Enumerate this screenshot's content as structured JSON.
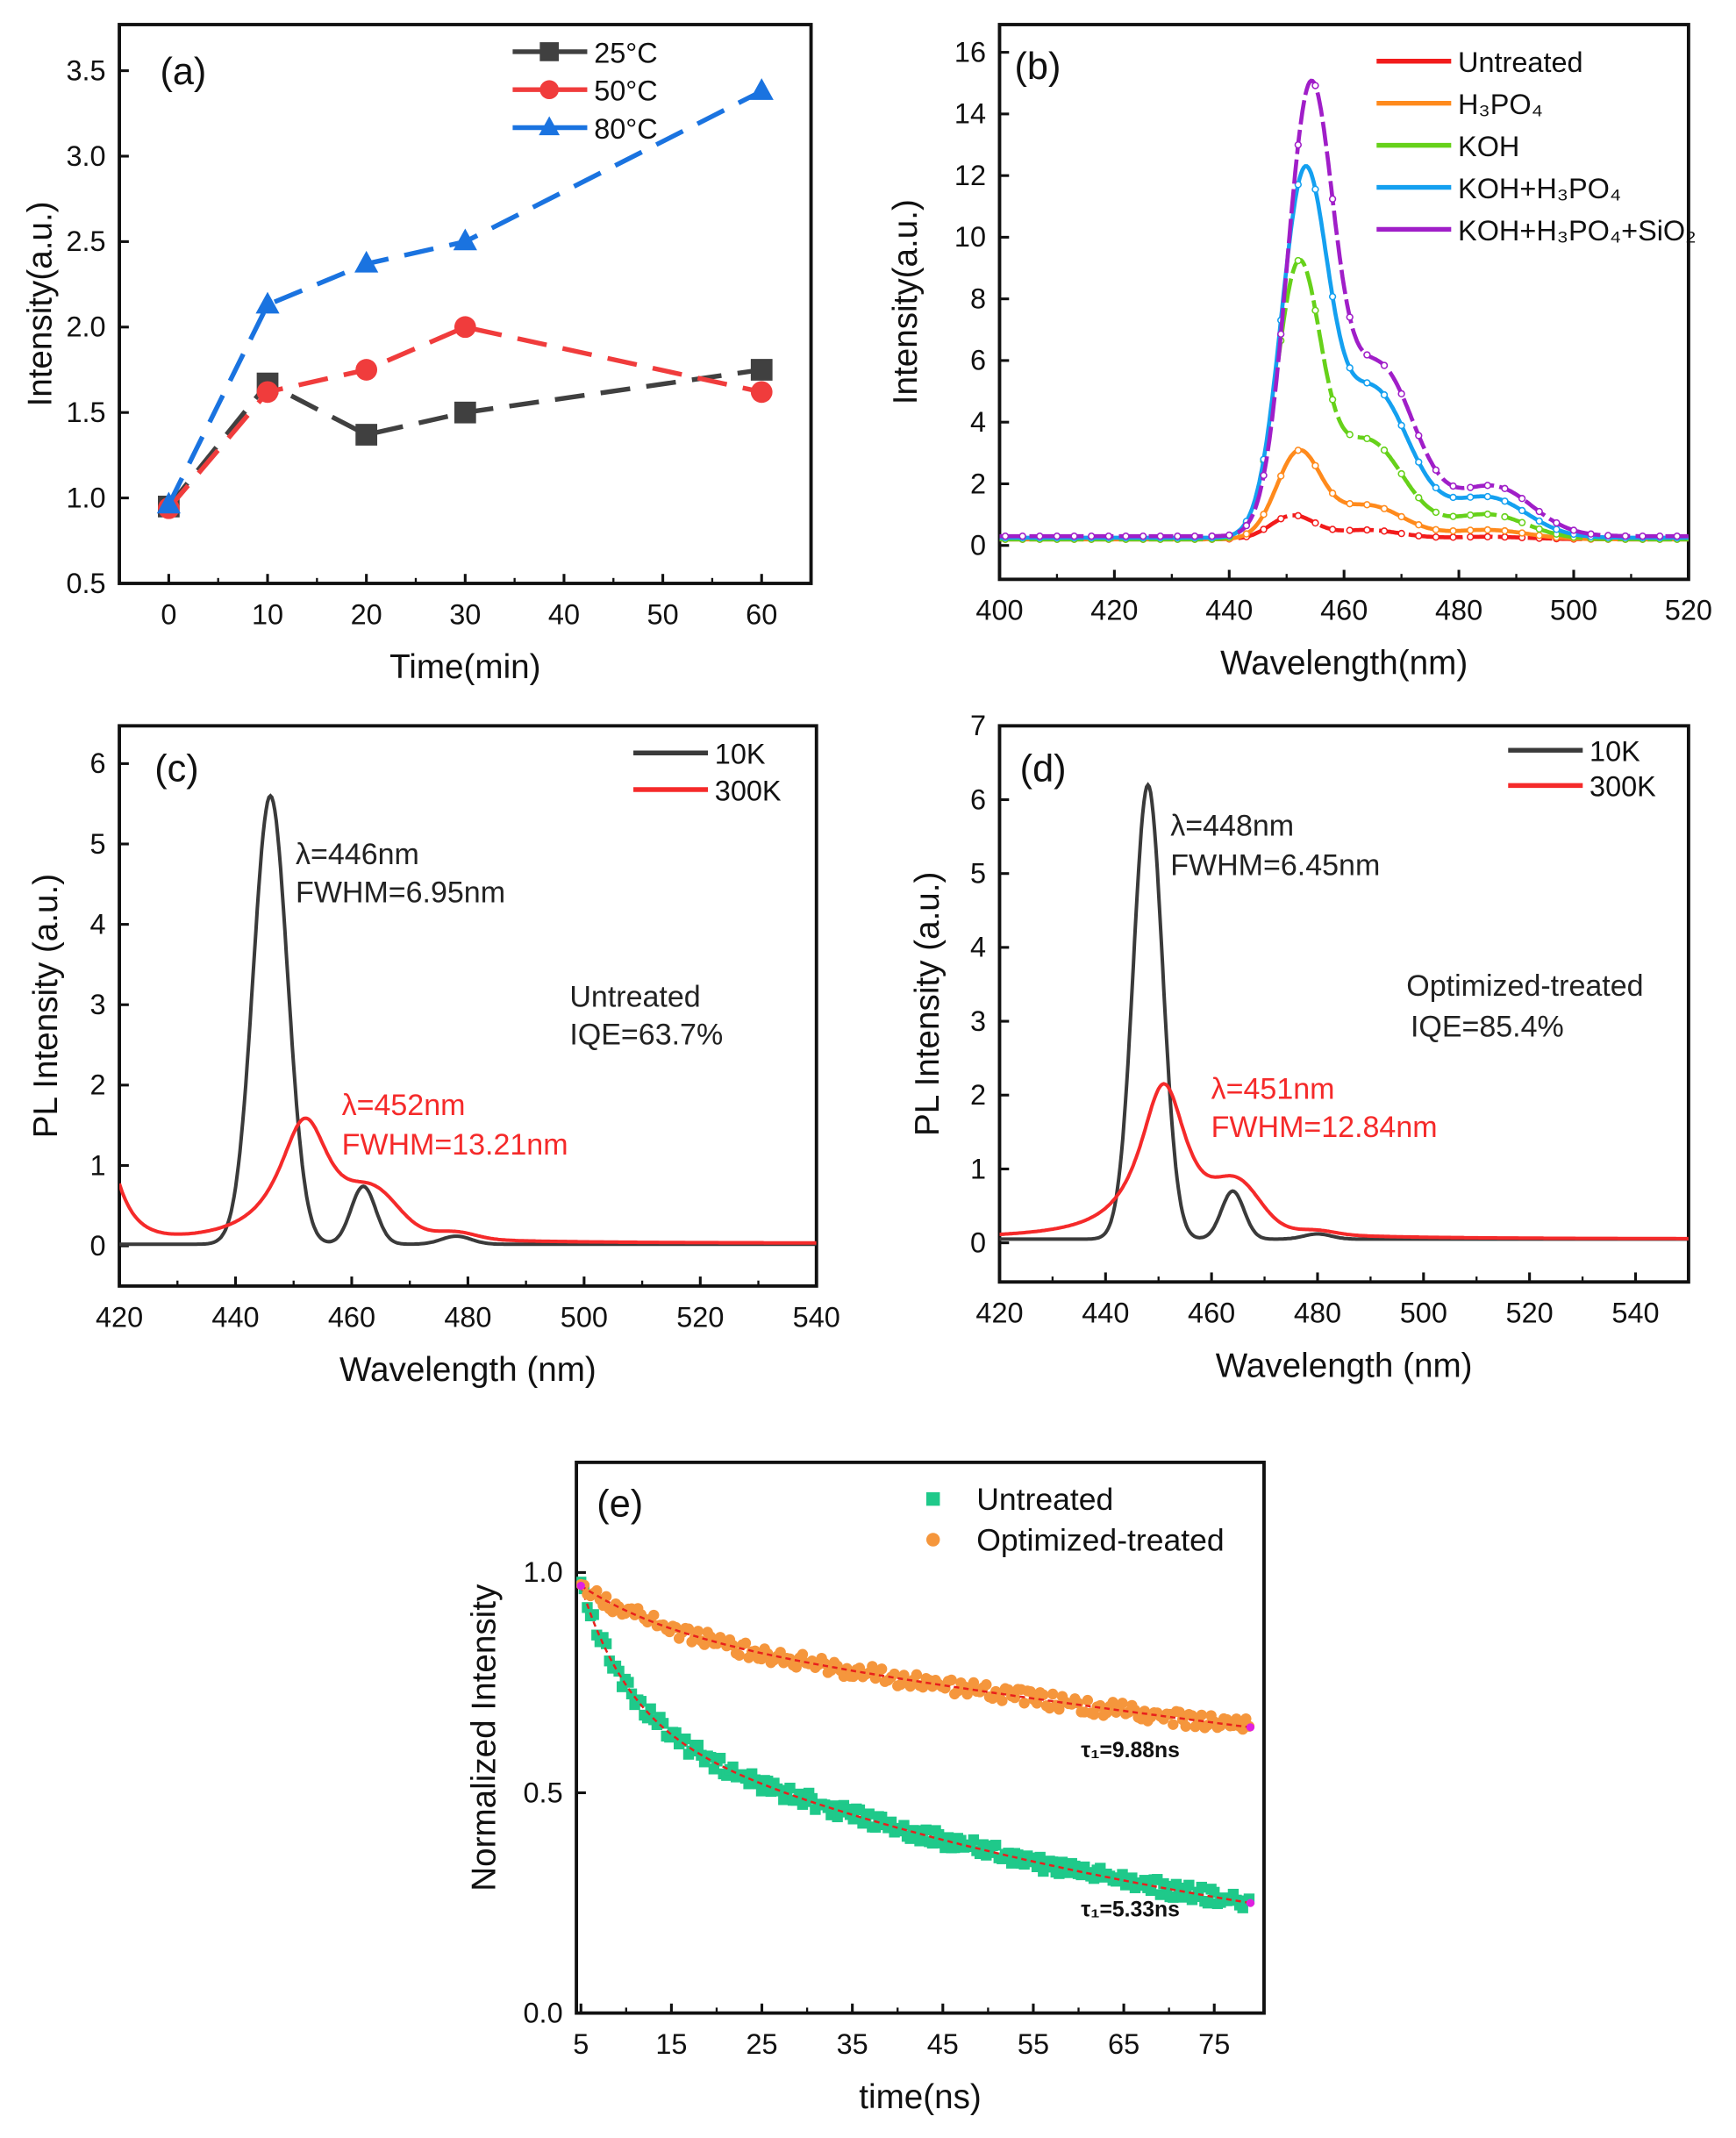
{
  "chart_data": [
    {
      "panel": "(a)",
      "type": "line",
      "xlabel": "Time(min)",
      "ylabel": "Intensity(a.u.)",
      "xlim": [
        -5,
        65
      ],
      "ylim": [
        0.5,
        3.77
      ],
      "xticks": [
        "0",
        "10",
        "20",
        "30",
        "40",
        "50",
        "60"
      ],
      "yticks": [
        "0.5",
        "1.0",
        "1.5",
        "2.0",
        "2.5",
        "3.0",
        "3.5"
      ],
      "legend": "top-right",
      "series": [
        {
          "name": "25°C",
          "color": "#404040",
          "marker": "square",
          "x": [
            0,
            10,
            20,
            30,
            60
          ],
          "y": [
            0.95,
            1.67,
            1.37,
            1.5,
            1.75
          ]
        },
        {
          "name": "50°C",
          "color": "#f03c3c",
          "marker": "circle",
          "x": [
            0,
            10,
            20,
            30,
            60
          ],
          "y": [
            0.94,
            1.62,
            1.75,
            2.0,
            1.62
          ]
        },
        {
          "name": "80°C",
          "color": "#1a73e0",
          "marker": "triangle",
          "x": [
            0,
            10,
            20,
            30,
            60
          ],
          "y": [
            0.96,
            2.13,
            2.37,
            2.5,
            3.38
          ]
        }
      ]
    },
    {
      "panel": "(b)",
      "type": "line",
      "xlabel": "Wavelength(nm)",
      "ylabel": "Intensity(a.u.)",
      "xlim": [
        400,
        520
      ],
      "ylim": [
        -1.1,
        16.9
      ],
      "xticks": [
        "400",
        "420",
        "440",
        "460",
        "480",
        "500",
        "520"
      ],
      "yticks": [
        "0",
        "2",
        "4",
        "6",
        "8",
        "10",
        "12",
        "14",
        "16"
      ],
      "legend": "top-right",
      "series": [
        {
          "name": "Untreated",
          "color": "#f21b1b",
          "baseline": 0.2,
          "peaks": [
            [
              "gauss",
              451,
              0.75,
              9
            ],
            [
              "gauss",
              464,
              0.3,
              14
            ],
            [
              "gauss",
              485,
              0.08,
              16
            ]
          ]
        },
        {
          "name": "H₃PO₄",
          "color": "#ff8a1c",
          "baseline": 0.2,
          "peaks": [
            [
              "gauss",
              452,
              2.7,
              9
            ],
            [
              "gauss",
              464,
              1.1,
              15
            ],
            [
              "gauss",
              485,
              0.3,
              16
            ]
          ]
        },
        {
          "name": "KOH",
          "color": "#66d11a",
          "baseline": 0.2,
          "peaks": [
            [
              "gauss",
              452,
              8.5,
              9
            ],
            [
              "gauss",
              464,
              3.2,
              15
            ],
            [
              "gauss",
              485,
              0.8,
              16
            ]
          ]
        },
        {
          "name": "KOH+H₃PO₄",
          "color": "#14a0f0",
          "baseline": 0.25,
          "peaks": [
            [
              "gauss",
              453,
              11.2,
              9.5
            ],
            [
              "gauss",
              465,
              4.8,
              15
            ],
            [
              "gauss",
              485,
              1.3,
              16
            ]
          ]
        },
        {
          "name": "KOH+H₃PO₄+SiO₂",
          "color": "#a01ec8",
          "baseline": 0.3,
          "peaks": [
            [
              "gauss",
              454,
              13.8,
              9.5
            ],
            [
              "gauss",
              466,
              5.5,
              15
            ],
            [
              "gauss",
              486,
              1.6,
              16
            ]
          ]
        }
      ]
    },
    {
      "panel": "(c)",
      "type": "line",
      "xlabel": "Wavelength (nm)",
      "ylabel": "PL Intensity (a.u.)",
      "xlim": [
        420,
        540
      ],
      "ylim": [
        -0.5,
        6.47
      ],
      "xticks": [
        "420",
        "440",
        "460",
        "480",
        "500",
        "520",
        "540"
      ],
      "yticks": [
        "0",
        "1",
        "2",
        "3",
        "4",
        "5",
        "6"
      ],
      "legend": "top-right",
      "series": [
        {
          "name": "10K",
          "color": "#3a3a3a",
          "baseline": 0.02,
          "peaks": [
            [
              "gauss",
              446,
              5.58,
              6.95
            ],
            [
              "gauss",
              462,
              0.72,
              5
            ],
            [
              "gauss",
              478,
              0.1,
              6
            ]
          ]
        },
        {
          "name": "300K",
          "color": "#f52a2a",
          "baseline": 0.03,
          "peaks": [
            [
              "lorentz",
              452,
              1.55,
              11
            ],
            [
              "gauss",
              464,
              0.45,
              10
            ],
            [
              "gauss",
              478,
              0.08,
              8
            ],
            [
              "edge",
              420,
              0.7,
              3
            ]
          ]
        }
      ],
      "annotations": [
        {
          "text": "λ=446nm",
          "color": "#222"
        },
        {
          "text": "FWHM=6.95nm",
          "color": "#222"
        },
        {
          "text": "Untreated",
          "color": "#222"
        },
        {
          "text": "IQE=63.7%",
          "color": "#222"
        },
        {
          "text": "λ=452nm",
          "color": "#f52a2a"
        },
        {
          "text": "FWHM=13.21nm",
          "color": "#f52a2a"
        }
      ]
    },
    {
      "panel": "(d)",
      "type": "line",
      "xlabel": "Wavelength (nm)",
      "ylabel": "PL Intensity (a.u.)",
      "xlim": [
        420,
        550
      ],
      "ylim": [
        -0.53,
        7
      ],
      "xticks": [
        "420",
        "440",
        "460",
        "480",
        "500",
        "520",
        "540"
      ],
      "yticks": [
        "0",
        "1",
        "2",
        "3",
        "4",
        "5",
        "6",
        "7"
      ],
      "legend": "top-right",
      "series": [
        {
          "name": "10K",
          "color": "#3a3a3a",
          "baseline": 0.05,
          "peaks": [
            [
              "gauss",
              448,
              6.15,
              6.45
            ],
            [
              "gauss",
              464,
              0.65,
              5
            ],
            [
              "gauss",
              480,
              0.07,
              6
            ]
          ]
        },
        {
          "name": "300K",
          "color": "#f52a2a",
          "baseline": 0.05,
          "peaks": [
            [
              "lorentz",
              451,
              2.1,
              11
            ],
            [
              "gauss",
              465,
              0.55,
              10
            ],
            [
              "gauss",
              480,
              0.05,
              8
            ]
          ]
        }
      ],
      "annotations": [
        {
          "text": "λ=448nm",
          "color": "#222"
        },
        {
          "text": "FWHM=6.45nm",
          "color": "#222"
        },
        {
          "text": "Optimized-treated",
          "color": "#222"
        },
        {
          "text": "IQE=85.4%",
          "color": "#222"
        },
        {
          "text": "λ=451nm",
          "color": "#f52a2a"
        },
        {
          "text": "FWHM=12.84nm",
          "color": "#f52a2a"
        }
      ]
    },
    {
      "panel": "(e)",
      "type": "scatter",
      "xlabel": "time(ns)",
      "ylabel": "Normalized Intensity",
      "xlim": [
        4.5,
        80.5
      ],
      "ylim": [
        0,
        1.25
      ],
      "xticks": [
        "5",
        "15",
        "25",
        "35",
        "45",
        "55",
        "65",
        "75"
      ],
      "yticks": [
        "0.0",
        "0.5",
        "1.0"
      ],
      "legend": "top-right",
      "fit_color": "#e8201c",
      "series": [
        {
          "name": "Untreated",
          "color": "#1fc98a",
          "marker": "square",
          "t0": 5,
          "t_end": 79,
          "a_fast": 0.3,
          "tau_fast": 5.33,
          "a_slow": 0.67,
          "tau_slow": 75,
          "fit_label": "τ₁=5.33ns"
        },
        {
          "name": "Optimized-treated",
          "color": "#f5963c",
          "marker": "circle",
          "t0": 5,
          "t_end": 79,
          "a_fast": 0.1,
          "tau_fast": 9.88,
          "a_slow": 0.87,
          "tau_slow": 252,
          "fit_label": "τ₁=9.88ns"
        }
      ]
    }
  ]
}
